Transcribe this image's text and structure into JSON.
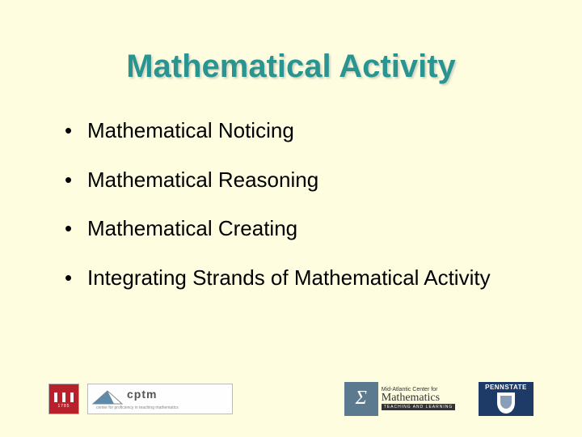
{
  "colors": {
    "slide_bg": "#fefde0",
    "title_color": "#2a9490",
    "text_color": "#000000",
    "uga_red": "#b8202a",
    "uga_year_color": "#ffffff",
    "cptm_blue": "#5e8aa8",
    "cptm_text": "#555555",
    "mac_bg": "#5b7a8f",
    "mac_text_dark": "#333333",
    "mac_text_light": "#ffffff",
    "psu_blue": "#1d3b66",
    "psu_white": "#ffffff",
    "psu_shield_inner": "#3a5f8a"
  },
  "title": "Mathematical Activity",
  "bullets": [
    "Mathematical Noticing",
    "Mathematical Reasoning",
    "Mathematical Creating",
    "Integrating Strands of Mathematical Activity"
  ],
  "logos": {
    "uga_year": "1785",
    "cptm_label": "cptm",
    "cptm_sub": "center for proficiency in teaching mathematics",
    "mac_line1": "Mid-Atlantic Center for",
    "mac_line2": "Mathematics",
    "mac_line3": "TEACHING AND LEARNING",
    "mac_glyph": "Σ",
    "psu_label": "PENNSTATE"
  }
}
